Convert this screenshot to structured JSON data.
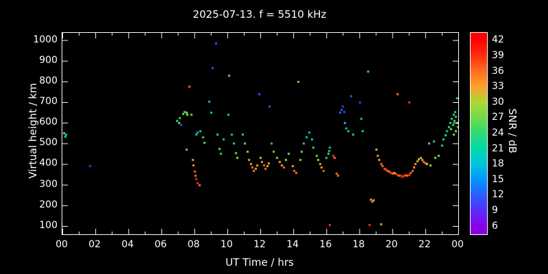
{
  "title": "2025-07-13. f = 5510 kHz",
  "chart_data": {
    "type": "scatter",
    "title": "2025-07-13. f = 5510 kHz",
    "xlabel": "UT Time / hrs",
    "ylabel": "Virtual height / km",
    "colorbar_label": "SNR / dB",
    "background": "#000000",
    "axis_color": "#ffffff",
    "x_range": [
      0,
      24
    ],
    "y_range": [
      60,
      1035
    ],
    "grid": false,
    "x_ticks": [
      {
        "v": 0,
        "label": "00"
      },
      {
        "v": 2,
        "label": "02"
      },
      {
        "v": 4,
        "label": "04"
      },
      {
        "v": 6,
        "label": "06"
      },
      {
        "v": 8,
        "label": "08"
      },
      {
        "v": 10,
        "label": "10"
      },
      {
        "v": 12,
        "label": "12"
      },
      {
        "v": 14,
        "label": "14"
      },
      {
        "v": 16,
        "label": "16"
      },
      {
        "v": 18,
        "label": "18"
      },
      {
        "v": 20,
        "label": "20"
      },
      {
        "v": 22,
        "label": "22"
      },
      {
        "v": 24,
        "label": "00"
      }
    ],
    "x_minor_ticks": [
      1,
      3,
      5,
      7,
      9,
      11,
      13,
      15,
      17,
      19,
      21,
      23
    ],
    "y_ticks": [
      100,
      200,
      300,
      400,
      500,
      600,
      700,
      800,
      900,
      1000
    ],
    "colorbar": {
      "range": [
        4.5,
        43.5
      ],
      "ticks": [
        6,
        9,
        12,
        15,
        18,
        21,
        24,
        27,
        30,
        33,
        36,
        39,
        42
      ],
      "stops": [
        {
          "v": 6,
          "color": "#8a00e6"
        },
        {
          "v": 9,
          "color": "#5a2bff"
        },
        {
          "v": 12,
          "color": "#2e5bff"
        },
        {
          "v": 15,
          "color": "#0095ff"
        },
        {
          "v": 18,
          "color": "#00c3e0"
        },
        {
          "v": 21,
          "color": "#00d9a8"
        },
        {
          "v": 24,
          "color": "#2ed977"
        },
        {
          "v": 27,
          "color": "#6fdc4a"
        },
        {
          "v": 30,
          "color": "#a8d934"
        },
        {
          "v": 33,
          "color": "#ffa030"
        },
        {
          "v": 36,
          "color": "#ff7020"
        },
        {
          "v": 39,
          "color": "#ff3010"
        },
        {
          "v": 42,
          "color": "#ff0000"
        }
      ]
    },
    "points": [
      [
        0.1,
        550,
        27
      ],
      [
        0.15,
        535,
        24
      ],
      [
        0.2,
        545,
        21
      ],
      [
        1.65,
        390,
        9
      ],
      [
        6.95,
        610,
        24
      ],
      [
        7.05,
        600,
        27
      ],
      [
        7.1,
        625,
        24
      ],
      [
        7.2,
        590,
        12
      ],
      [
        7.3,
        645,
        27
      ],
      [
        7.4,
        655,
        24
      ],
      [
        7.5,
        650,
        27
      ],
      [
        7.55,
        640,
        30
      ],
      [
        7.5,
        470,
        27
      ],
      [
        7.7,
        775,
        36
      ],
      [
        7.8,
        640,
        27
      ],
      [
        7.9,
        420,
        33
      ],
      [
        7.95,
        395,
        33
      ],
      [
        8.0,
        365,
        36
      ],
      [
        8.05,
        345,
        36
      ],
      [
        8.1,
        330,
        39
      ],
      [
        8.2,
        310,
        39
      ],
      [
        8.3,
        300,
        36
      ],
      [
        8.1,
        545,
        21
      ],
      [
        8.2,
        555,
        18
      ],
      [
        8.35,
        560,
        21
      ],
      [
        8.5,
        530,
        24
      ],
      [
        8.6,
        505,
        27
      ],
      [
        8.9,
        705,
        18
      ],
      [
        9.0,
        650,
        21
      ],
      [
        9.1,
        865,
        12
      ],
      [
        9.3,
        985,
        12
      ],
      [
        9.4,
        545,
        24
      ],
      [
        9.5,
        475,
        27
      ],
      [
        9.6,
        450,
        24
      ],
      [
        9.75,
        520,
        21
      ],
      [
        10.05,
        640,
        24
      ],
      [
        10.1,
        830,
        27
      ],
      [
        10.25,
        545,
        21
      ],
      [
        10.4,
        500,
        24
      ],
      [
        10.5,
        455,
        27
      ],
      [
        10.6,
        430,
        30
      ],
      [
        10.9,
        545,
        24
      ],
      [
        11.05,
        500,
        27
      ],
      [
        11.2,
        460,
        30
      ],
      [
        11.3,
        420,
        33
      ],
      [
        11.4,
        400,
        33
      ],
      [
        11.5,
        385,
        36
      ],
      [
        11.6,
        370,
        36
      ],
      [
        11.7,
        380,
        33
      ],
      [
        11.8,
        395,
        33
      ],
      [
        11.9,
        740,
        12
      ],
      [
        12.0,
        430,
        30
      ],
      [
        12.1,
        410,
        33
      ],
      [
        12.2,
        395,
        36
      ],
      [
        12.3,
        380,
        36
      ],
      [
        12.4,
        390,
        33
      ],
      [
        12.5,
        405,
        33
      ],
      [
        12.55,
        680,
        12
      ],
      [
        12.65,
        500,
        24
      ],
      [
        12.8,
        460,
        27
      ],
      [
        13.0,
        430,
        30
      ],
      [
        13.15,
        410,
        33
      ],
      [
        13.3,
        395,
        33
      ],
      [
        13.4,
        385,
        36
      ],
      [
        13.55,
        420,
        30
      ],
      [
        13.7,
        450,
        27
      ],
      [
        13.95,
        390,
        33
      ],
      [
        14.05,
        370,
        36
      ],
      [
        14.15,
        360,
        36
      ],
      [
        14.3,
        800,
        27
      ],
      [
        14.4,
        420,
        30
      ],
      [
        14.5,
        460,
        27
      ],
      [
        14.6,
        500,
        24
      ],
      [
        14.8,
        530,
        21
      ],
      [
        14.95,
        555,
        18
      ],
      [
        15.1,
        520,
        21
      ],
      [
        15.2,
        480,
        24
      ],
      [
        15.4,
        440,
        27
      ],
      [
        15.5,
        420,
        30
      ],
      [
        15.6,
        400,
        33
      ],
      [
        15.7,
        385,
        33
      ],
      [
        15.8,
        370,
        36
      ],
      [
        16.0,
        430,
        24
      ],
      [
        16.1,
        450,
        24
      ],
      [
        16.15,
        465,
        21
      ],
      [
        16.2,
        480,
        21
      ],
      [
        16.2,
        105,
        39
      ],
      [
        16.4,
        440,
        39
      ],
      [
        16.5,
        430,
        36
      ],
      [
        16.6,
        355,
        36
      ],
      [
        16.7,
        345,
        36
      ],
      [
        16.8,
        650,
        12
      ],
      [
        16.9,
        665,
        12
      ],
      [
        17.0,
        680,
        9
      ],
      [
        17.05,
        655,
        12
      ],
      [
        17.1,
        600,
        18
      ],
      [
        17.2,
        575,
        18
      ],
      [
        17.3,
        560,
        21
      ],
      [
        17.5,
        730,
        12
      ],
      [
        17.6,
        545,
        21
      ],
      [
        18.0,
        700,
        9
      ],
      [
        18.1,
        620,
        18
      ],
      [
        18.2,
        560,
        21
      ],
      [
        18.5,
        850,
        24
      ],
      [
        18.6,
        105,
        39
      ],
      [
        18.7,
        230,
        33
      ],
      [
        18.75,
        220,
        36
      ],
      [
        18.85,
        225,
        33
      ],
      [
        19.0,
        470,
        30
      ],
      [
        19.1,
        440,
        33
      ],
      [
        19.2,
        420,
        33
      ],
      [
        19.3,
        110,
        33
      ],
      [
        19.3,
        400,
        36
      ],
      [
        19.4,
        390,
        36
      ],
      [
        19.5,
        380,
        36
      ],
      [
        19.6,
        375,
        39
      ],
      [
        19.7,
        370,
        36
      ],
      [
        19.8,
        365,
        36
      ],
      [
        19.9,
        360,
        39
      ],
      [
        20.0,
        355,
        36
      ],
      [
        20.1,
        360,
        33
      ],
      [
        20.2,
        355,
        36
      ],
      [
        20.3,
        350,
        39
      ],
      [
        20.4,
        345,
        36
      ],
      [
        20.5,
        345,
        39
      ],
      [
        20.6,
        340,
        39
      ],
      [
        20.7,
        345,
        36
      ],
      [
        20.8,
        350,
        39
      ],
      [
        20.9,
        345,
        36
      ],
      [
        20.3,
        740,
        36
      ],
      [
        21.0,
        700,
        39
      ],
      [
        21.0,
        350,
        39
      ],
      [
        21.1,
        360,
        36
      ],
      [
        21.2,
        370,
        36
      ],
      [
        21.3,
        385,
        33
      ],
      [
        21.4,
        400,
        33
      ],
      [
        21.5,
        415,
        33
      ],
      [
        21.6,
        425,
        30
      ],
      [
        21.7,
        430,
        33
      ],
      [
        21.8,
        420,
        33
      ],
      [
        21.9,
        410,
        36
      ],
      [
        22.0,
        405,
        33
      ],
      [
        22.1,
        400,
        33
      ],
      [
        22.3,
        395,
        30
      ],
      [
        22.2,
        500,
        27
      ],
      [
        22.5,
        510,
        24
      ],
      [
        22.6,
        430,
        30
      ],
      [
        22.8,
        440,
        27
      ],
      [
        23.0,
        490,
        24
      ],
      [
        23.1,
        520,
        21
      ],
      [
        23.2,
        540,
        24
      ],
      [
        23.3,
        560,
        21
      ],
      [
        23.4,
        580,
        24
      ],
      [
        23.5,
        600,
        24
      ],
      [
        23.55,
        570,
        27
      ],
      [
        23.6,
        620,
        21
      ],
      [
        23.65,
        590,
        24
      ],
      [
        23.7,
        640,
        24
      ],
      [
        23.72,
        545,
        27
      ],
      [
        23.75,
        610,
        27
      ],
      [
        23.8,
        655,
        21
      ],
      [
        23.82,
        560,
        30
      ],
      [
        23.85,
        630,
        24
      ],
      [
        23.9,
        720,
        24
      ],
      [
        23.92,
        600,
        27
      ],
      [
        23.95,
        580,
        24
      ]
    ]
  }
}
